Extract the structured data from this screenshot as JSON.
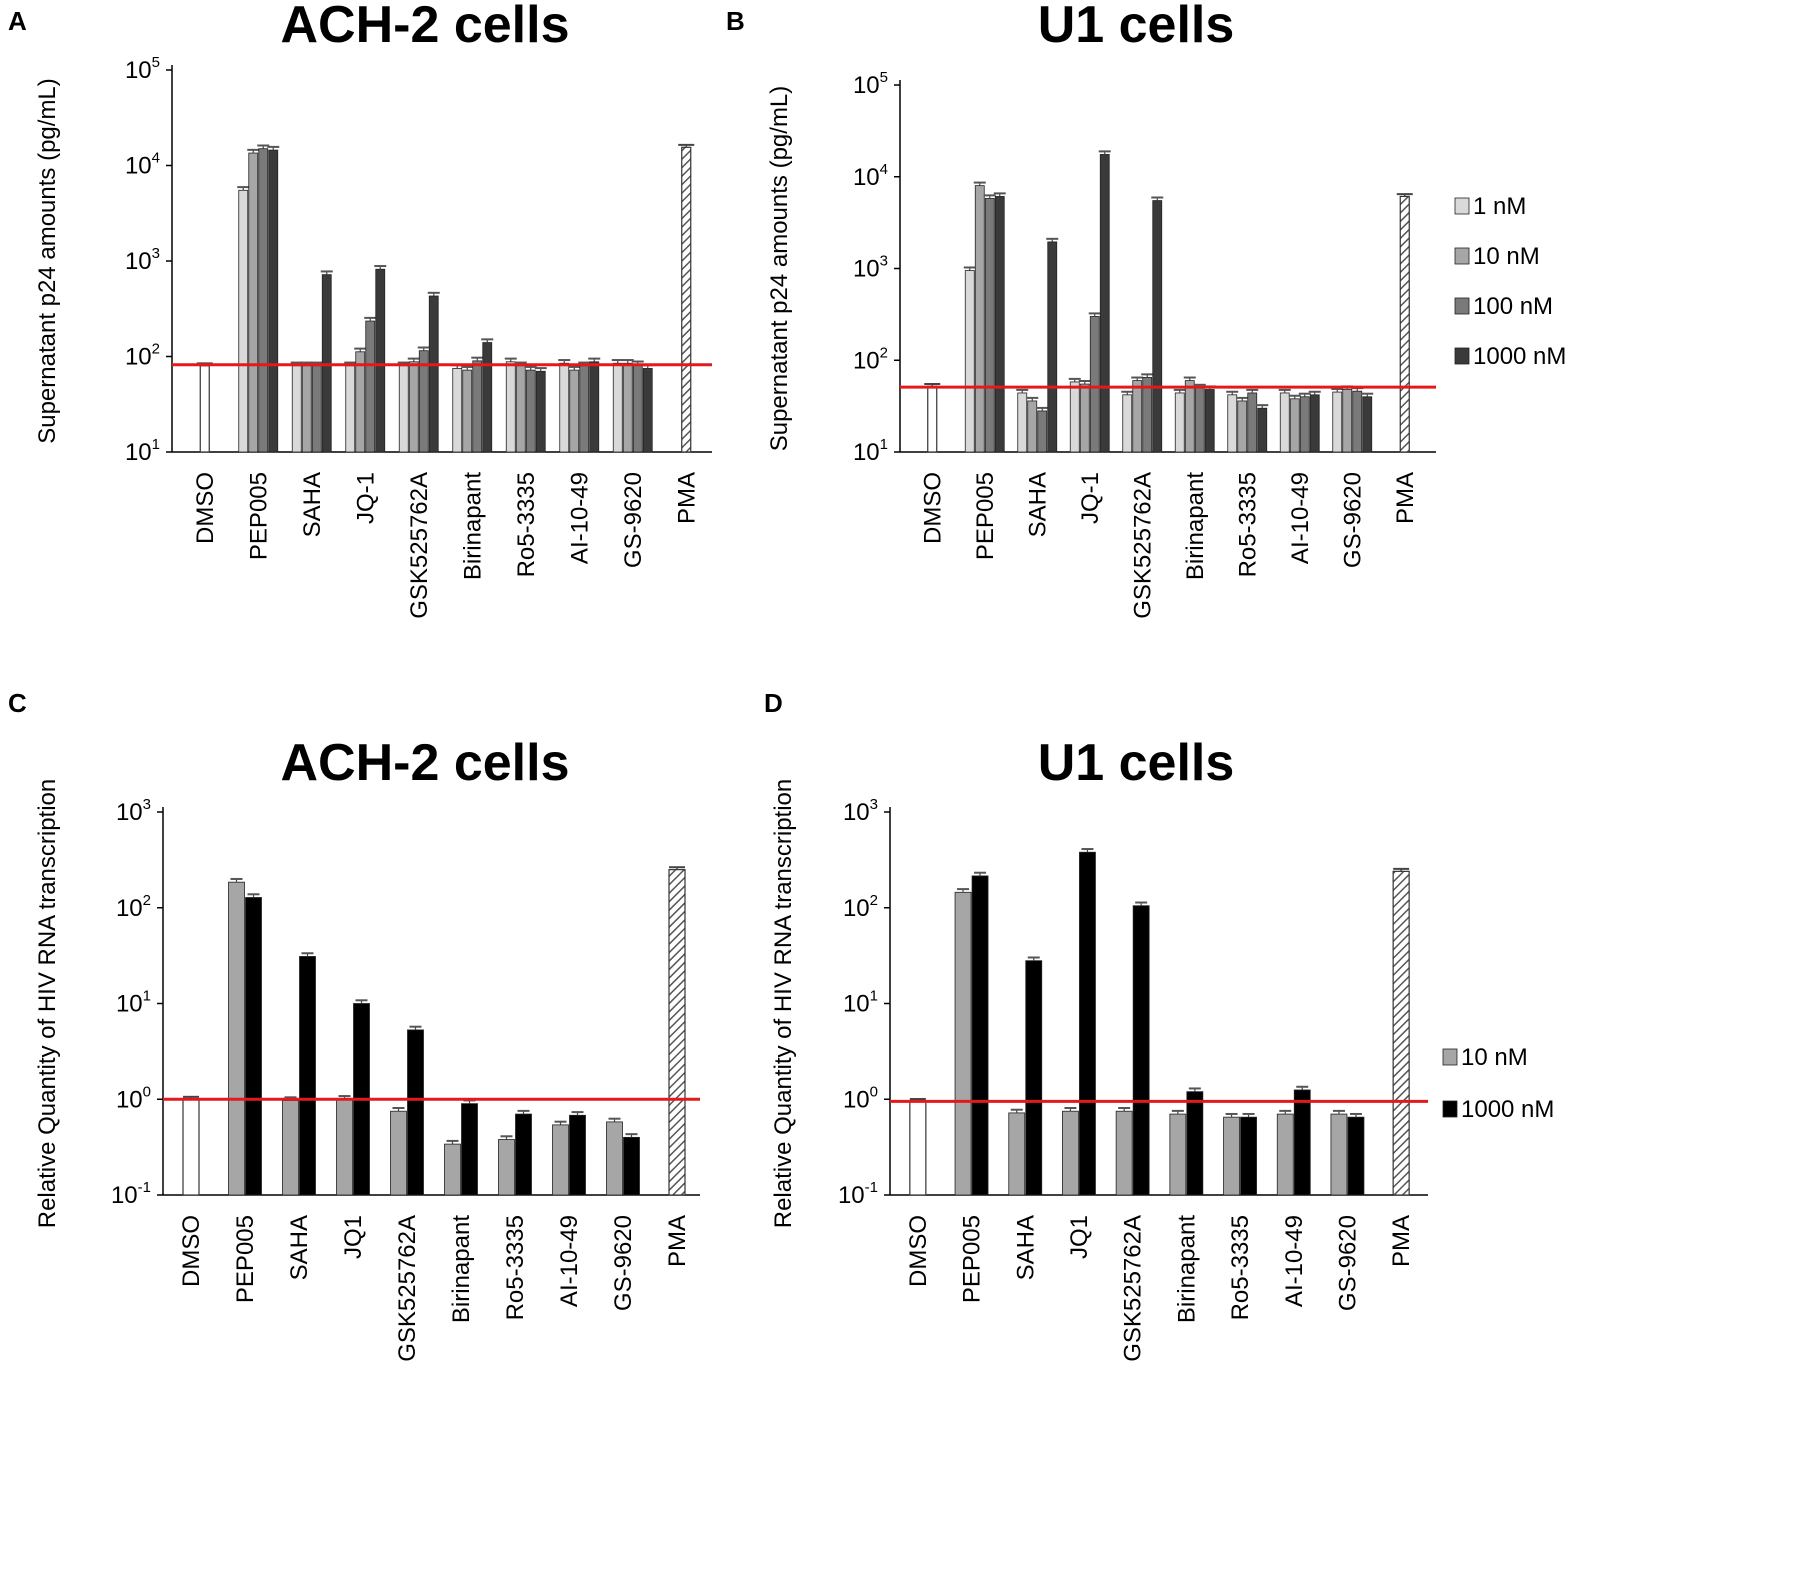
{
  "colors": {
    "1 nM": "#d9d9d9",
    "10 nM": "#a6a6a6",
    "100 nM": "#7a7a7a",
    "1000 nM": "#3a3a3a",
    "1000 nM black": "#000000",
    "control": "#ffffff",
    "reference_line": "#e31a1c",
    "hatch": "#555555"
  },
  "chart_data": [
    {
      "panel": "A",
      "title": "ACH-2 cells",
      "type": "bar",
      "ylabel": "Supernatant p24 amounts (pg/mL)",
      "yscale": "log",
      "ylim_exponents": [
        1,
        5
      ],
      "yticks": [
        {
          "base": "10",
          "exp": "1"
        },
        {
          "base": "10",
          "exp": "2"
        },
        {
          "base": "10",
          "exp": "3"
        },
        {
          "base": "10",
          "exp": "4"
        },
        {
          "base": "10",
          "exp": "5"
        }
      ],
      "reference_line": 82,
      "categories": [
        "DMSO",
        "PEP005",
        "SAHA",
        "JQ-1",
        "GSK525762A",
        "Birinapant",
        "Ro5-3335",
        "AI-10-49",
        "GS-9620",
        "PMA"
      ],
      "series_names": [
        "1 nM",
        "10 nM",
        "100 nM",
        "1000 nM"
      ],
      "single_bar_categories": {
        "DMSO": {
          "value": 80,
          "style": "control"
        },
        "PMA": {
          "value": 15500,
          "style": "hatch"
        }
      },
      "series": [
        {
          "name": "1 nM",
          "values": [
            null,
            5500,
            80,
            80,
            80,
            75,
            88,
            85,
            85,
            null
          ]
        },
        {
          "name": "10 nM",
          "values": [
            null,
            13500,
            80,
            112,
            88,
            72,
            80,
            72,
            85,
            null
          ]
        },
        {
          "name": "100 nM",
          "values": [
            null,
            15000,
            80,
            235,
            115,
            90,
            72,
            80,
            82,
            null
          ]
        },
        {
          "name": "1000 nM",
          "values": [
            null,
            14500,
            720,
            820,
            430,
            140,
            70,
            88,
            75,
            null
          ]
        }
      ]
    },
    {
      "panel": "B",
      "title": "U1 cells",
      "type": "bar",
      "ylabel": "Supernatant p24 amounts (pg/mL)",
      "yscale": "log",
      "ylim_exponents": [
        1,
        5
      ],
      "yticks": [
        {
          "base": "10",
          "exp": "1"
        },
        {
          "base": "10",
          "exp": "2"
        },
        {
          "base": "10",
          "exp": "3"
        },
        {
          "base": "10",
          "exp": "4"
        },
        {
          "base": "10",
          "exp": "5"
        }
      ],
      "reference_line": 51,
      "categories": [
        "DMSO",
        "PEP005",
        "SAHA",
        "JQ-1",
        "GSK525762A",
        "Birinapant",
        "Ro5-3335",
        "AI-10-49",
        "GS-9620",
        "PMA"
      ],
      "series_names": [
        "1 nM",
        "10 nM",
        "100 nM",
        "1000 nM"
      ],
      "single_bar_categories": {
        "DMSO": {
          "value": 52,
          "style": "control"
        },
        "PMA": {
          "value": 6100,
          "style": "hatch"
        }
      },
      "series": [
        {
          "name": "1 nM",
          "values": [
            null,
            950,
            44,
            58,
            42,
            44,
            42,
            44,
            45,
            null
          ]
        },
        {
          "name": "10 nM",
          "values": [
            null,
            8000,
            36,
            55,
            60,
            60,
            36,
            38,
            48,
            null
          ]
        },
        {
          "name": "100 nM",
          "values": [
            null,
            5800,
            28,
            300,
            65,
            50,
            44,
            40,
            46,
            null
          ]
        },
        {
          "name": "1000 nM",
          "values": [
            null,
            6100,
            1950,
            17500,
            5500,
            48,
            30,
            42,
            40,
            null
          ]
        }
      ],
      "legend": [
        "1 nM",
        "10 nM",
        "100 nM",
        "1000 nM"
      ]
    },
    {
      "panel": "C",
      "title": "ACH-2 cells",
      "type": "bar",
      "ylabel": "Relative Quantity of HIV RNA transcription",
      "yscale": "log",
      "ylim_exponents": [
        -1,
        3
      ],
      "yticks": [
        {
          "base": "10",
          "exp": "-1"
        },
        {
          "base": "10",
          "exp": "0"
        },
        {
          "base": "10",
          "exp": "1"
        },
        {
          "base": "10",
          "exp": "2"
        },
        {
          "base": "10",
          "exp": "3"
        }
      ],
      "reference_line": 1.0,
      "categories": [
        "DMSO",
        "PEP005",
        "SAHA",
        "JQ1",
        "GSK525762A",
        "Birinapant",
        "Ro5-3335",
        "AI-10-49",
        "GS-9620",
        "PMA"
      ],
      "series_names": [
        "10 nM",
        "1000 nM black"
      ],
      "single_bar_categories": {
        "DMSO": {
          "value": 1.0,
          "style": "control"
        },
        "PMA": {
          "value": 250,
          "style": "hatch"
        }
      },
      "series": [
        {
          "name": "10 nM",
          "values": [
            null,
            185,
            0.97,
            1.0,
            0.75,
            0.34,
            0.38,
            0.54,
            0.58,
            null
          ]
        },
        {
          "name": "1000 nM black",
          "values": [
            null,
            128,
            31,
            10,
            5.3,
            0.9,
            0.7,
            0.68,
            0.4,
            null
          ]
        }
      ]
    },
    {
      "panel": "D",
      "title": "U1 cells",
      "type": "bar",
      "ylabel": "Relative Quantity of HIV RNA transcription",
      "yscale": "log",
      "ylim_exponents": [
        -1,
        3
      ],
      "yticks": [
        {
          "base": "10",
          "exp": "-1"
        },
        {
          "base": "10",
          "exp": "0"
        },
        {
          "base": "10",
          "exp": "1"
        },
        {
          "base": "10",
          "exp": "2"
        },
        {
          "base": "10",
          "exp": "3"
        }
      ],
      "reference_line": 0.95,
      "categories": [
        "DMSO",
        "PEP005",
        "SAHA",
        "JQ1",
        "GSK525762A",
        "Birinapant",
        "Ro5-3335",
        "AI-10-49",
        "GS-9620",
        "PMA"
      ],
      "series_names": [
        "10 nM",
        "1000 nM black"
      ],
      "single_bar_categories": {
        "DMSO": {
          "value": 0.95,
          "style": "control"
        },
        "PMA": {
          "value": 240,
          "style": "hatch"
        }
      },
      "series": [
        {
          "name": "10 nM",
          "values": [
            null,
            145,
            0.72,
            0.75,
            0.75,
            0.7,
            0.65,
            0.7,
            0.7,
            null
          ]
        },
        {
          "name": "1000 nM black",
          "values": [
            null,
            215,
            28,
            380,
            105,
            1.2,
            0.65,
            1.25,
            0.65,
            null
          ]
        }
      ],
      "legend": [
        "10 nM",
        "1000 nM"
      ]
    }
  ]
}
